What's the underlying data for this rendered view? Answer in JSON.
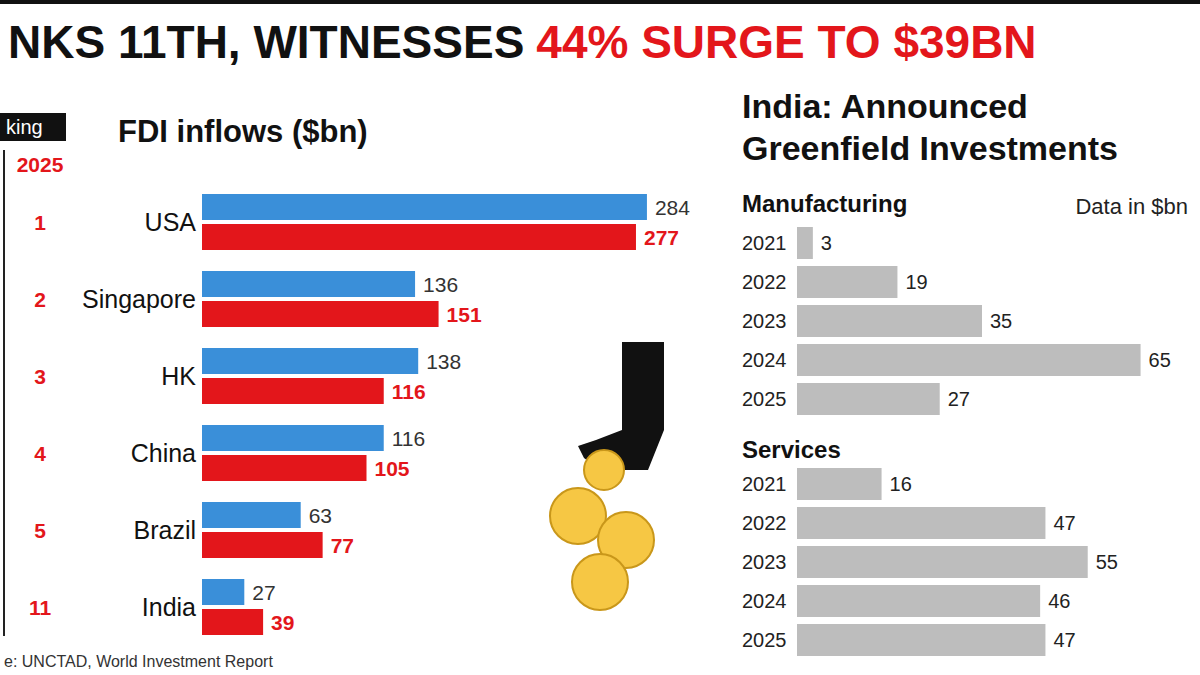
{
  "headline": {
    "text": "NKS 11TH, WITNESSES",
    "highlight": "44% SURGE TO $39BN"
  },
  "chart_data": [
    {
      "type": "bar",
      "orientation": "horizontal",
      "title": "FDI inflows ($bn)",
      "rank_header": "king",
      "rank_year": "2025",
      "ranks": [
        1,
        2,
        3,
        4,
        5,
        11
      ],
      "categories": [
        "USA",
        "Singapore",
        "HK",
        "China",
        "Brazil",
        "India"
      ],
      "series": [
        {
          "color": "#3a8fd9",
          "values": [
            284,
            136,
            138,
            116,
            63,
            27
          ]
        },
        {
          "color": "#e3161b",
          "values": [
            277,
            151,
            116,
            105,
            77,
            39
          ]
        }
      ],
      "xlim": [
        0,
        300
      ],
      "tick_labels": "y",
      "data_labels": true,
      "source": "e: UNCTAD, World Investment Report"
    },
    {
      "type": "bar",
      "orientation": "horizontal",
      "title": "India: Announced Greenfield Investments",
      "subtitle": "Manufacturing",
      "annotation": "Data in $bn",
      "categories": [
        "2021",
        "2022",
        "2023",
        "2024",
        "2025"
      ],
      "values": [
        3,
        19,
        35,
        65,
        27
      ],
      "color": "#bdbdbd",
      "xlim": [
        0,
        70
      ],
      "tick_labels": "y",
      "data_labels": true
    },
    {
      "type": "bar",
      "orientation": "horizontal",
      "subtitle": "Services",
      "categories": [
        "2021",
        "2022",
        "2023",
        "2024",
        "2025"
      ],
      "values": [
        16,
        47,
        55,
        46,
        47
      ],
      "color": "#bdbdbd",
      "xlim": [
        0,
        70
      ],
      "tick_labels": "y",
      "data_labels": true
    }
  ]
}
